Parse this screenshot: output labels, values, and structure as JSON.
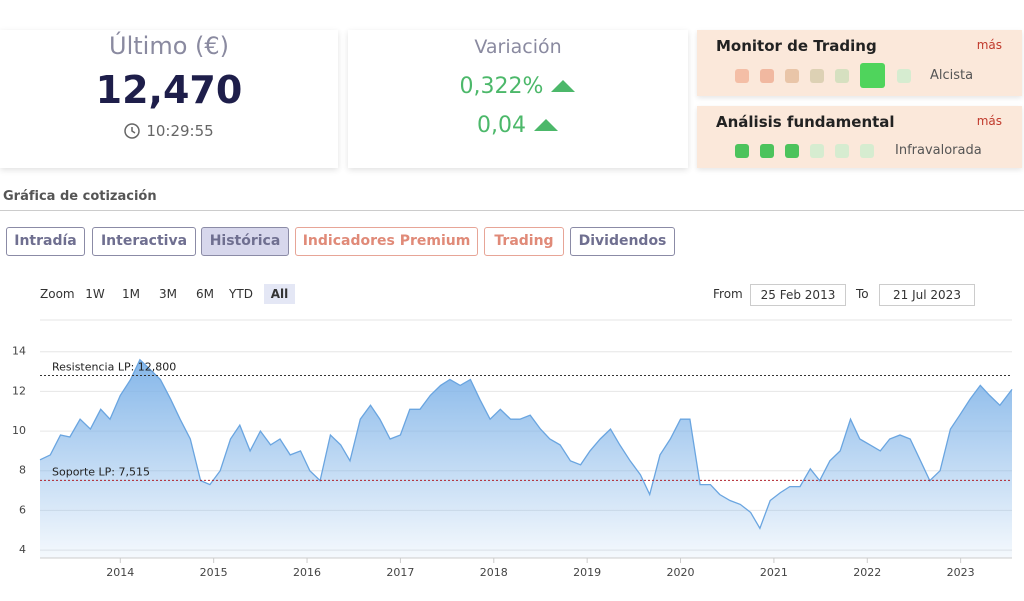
{
  "header": {
    "last_label": "Último (€)",
    "last_value": "12,470",
    "time": "10:29:55",
    "variation_label": "Variación",
    "variation_pct": "0,322%",
    "variation_abs": "0,04"
  },
  "monitor": {
    "title": "Monitor de Trading",
    "more": "más",
    "status": "Alcista"
  },
  "fundamental": {
    "title": "Análisis fundamental",
    "more": "más",
    "status": "Infravalorada"
  },
  "section_title": "Gráfica de cotización",
  "tabs": [
    "Intradía",
    "Interactiva",
    "Histórica",
    "Indicadores Premium",
    "Trading",
    "Dividendos"
  ],
  "zoom": {
    "label": "Zoom",
    "buttons": [
      "1W",
      "1M",
      "3M",
      "6M",
      "YTD",
      "All"
    ]
  },
  "range": {
    "from_label": "From",
    "from": "25 Feb 2013",
    "to_label": "To",
    "to": "21 Jul 2023"
  },
  "chart_data": {
    "type": "area",
    "x": [
      2013.14,
      2013.25,
      2013.36,
      2013.46,
      2013.57,
      2013.68,
      2013.79,
      2013.89,
      2014.0,
      2014.11,
      2014.21,
      2014.32,
      2014.43,
      2014.54,
      2014.64,
      2014.75,
      2014.86,
      2014.96,
      2015.07,
      2015.18,
      2015.28,
      2015.39,
      2015.5,
      2015.61,
      2015.71,
      2015.82,
      2015.93,
      2016.03,
      2016.14,
      2016.25,
      2016.36,
      2016.46,
      2016.57,
      2016.68,
      2016.78,
      2016.89,
      2017.0,
      2017.1,
      2017.21,
      2017.32,
      2017.43,
      2017.53,
      2017.64,
      2017.75,
      2017.85,
      2017.96,
      2018.07,
      2018.18,
      2018.28,
      2018.39,
      2018.5,
      2018.6,
      2018.71,
      2018.82,
      2018.93,
      2019.03,
      2019.14,
      2019.25,
      2019.35,
      2019.46,
      2019.57,
      2019.67,
      2019.78,
      2019.89,
      2020.0,
      2020.1,
      2020.21,
      2020.32,
      2020.42,
      2020.53,
      2020.64,
      2020.75,
      2020.85,
      2020.96,
      2021.07,
      2021.17,
      2021.28,
      2021.39,
      2021.49,
      2021.6,
      2021.71,
      2021.82,
      2021.92,
      2022.03,
      2022.14,
      2022.24,
      2022.35,
      2022.46,
      2022.57,
      2022.67,
      2022.78,
      2022.89,
      2022.99,
      2023.1,
      2023.21,
      2023.31,
      2023.42,
      2023.55
    ],
    "values": [
      8.55,
      8.8,
      9.8,
      9.7,
      10.6,
      10.1,
      11.1,
      10.6,
      11.8,
      12.6,
      13.6,
      13.1,
      12.6,
      11.6,
      10.6,
      9.6,
      7.5,
      7.3,
      8.0,
      9.6,
      10.3,
      9.0,
      10.0,
      9.3,
      9.6,
      8.8,
      9.0,
      8.0,
      7.5,
      9.8,
      9.3,
      8.5,
      10.6,
      11.3,
      10.6,
      9.6,
      9.8,
      11.1,
      11.1,
      11.8,
      12.3,
      12.6,
      12.3,
      12.6,
      11.6,
      10.6,
      11.1,
      10.6,
      10.6,
      10.8,
      10.1,
      9.6,
      9.3,
      8.5,
      8.3,
      9.0,
      9.6,
      10.1,
      9.3,
      8.5,
      7.8,
      6.8,
      8.8,
      9.6,
      10.6,
      10.6,
      7.3,
      7.3,
      6.8,
      6.5,
      6.3,
      5.9,
      5.1,
      6.5,
      6.9,
      7.2,
      7.2,
      8.1,
      7.5,
      8.5,
      9.0,
      10.6,
      9.6,
      9.3,
      9.0,
      9.6,
      9.8,
      9.6,
      8.5,
      7.5,
      8.0,
      10.1,
      10.8,
      11.6,
      12.3,
      11.8,
      11.3,
      12.1
    ],
    "color": "#6aa5e0",
    "xlim": [
      2013.14,
      2023.55
    ],
    "xticks": [
      2014,
      2015,
      2016,
      2017,
      2018,
      2019,
      2020,
      2021,
      2022,
      2023
    ],
    "ylim": [
      3.6,
      15.6
    ],
    "yticks": [
      4,
      6,
      8,
      10,
      12,
      14
    ],
    "grid": true,
    "reference_lines": [
      {
        "label": "Resistencia LP: 12,800",
        "value": 12.8,
        "color": "#333333"
      },
      {
        "label": "Soporte LP: 7,515",
        "value": 7.515,
        "color": "#b0202a"
      }
    ]
  }
}
